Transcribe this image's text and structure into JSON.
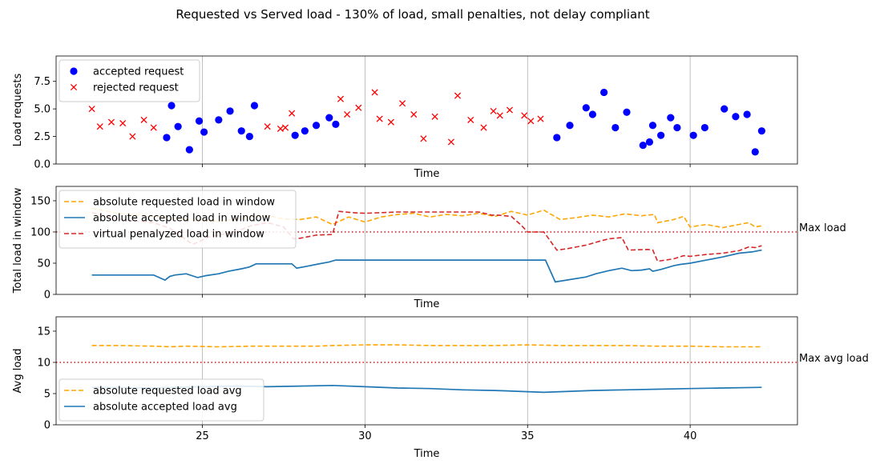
{
  "chart_data": {
    "title": "Requested vs Served load - 130% of load, small penalties, not delay compliant",
    "x_ticks": [
      25,
      30,
      35,
      40
    ],
    "xlim": [
      20.5,
      43.3
    ],
    "panels": [
      {
        "type": "scatter",
        "xlabel": "Time",
        "ylabel": "Load requests",
        "ylim": [
          0,
          9.8
        ],
        "y_ticks": [
          "0.0",
          "2.5",
          "5.0",
          "7.5"
        ],
        "y_tick_values": [
          0,
          2.5,
          5,
          7.5
        ],
        "legend_position": "top-left",
        "series": [
          {
            "name": "accepted request",
            "marker": "dot",
            "color": "#0000ff",
            "x": [
              23.9,
              24.05,
              24.25,
              24.6,
              24.9,
              25.05,
              25.5,
              25.85,
              26.2,
              26.45,
              26.6,
              27.85,
              28.15,
              28.5,
              28.9,
              29.1,
              35.9,
              36.3,
              36.8,
              37.0,
              37.35,
              37.7,
              38.05,
              38.55,
              38.75,
              38.85,
              39.1,
              39.4,
              39.6,
              40.1,
              40.45,
              41.05,
              41.4,
              41.75,
              42.0,
              42.2
            ],
            "y": [
              2.4,
              5.3,
              3.4,
              1.3,
              3.9,
              2.9,
              4.0,
              4.8,
              3.0,
              2.5,
              5.3,
              2.6,
              3.0,
              3.5,
              4.2,
              3.6,
              2.4,
              3.5,
              5.1,
              4.5,
              6.5,
              3.3,
              4.7,
              1.7,
              2.0,
              3.5,
              2.6,
              4.2,
              3.3,
              2.6,
              3.3,
              5.0,
              4.3,
              4.5,
              1.1,
              3.0
            ]
          },
          {
            "name": "rejected request",
            "marker": "cross",
            "color": "#ff0000",
            "x": [
              21.6,
              21.85,
              22.2,
              22.55,
              22.85,
              23.2,
              23.5,
              27.0,
              27.4,
              27.55,
              27.75,
              29.25,
              29.45,
              29.8,
              30.3,
              30.45,
              30.8,
              31.15,
              31.5,
              31.8,
              32.15,
              32.65,
              32.85,
              33.25,
              33.65,
              33.95,
              34.15,
              34.45,
              34.9,
              35.1,
              35.4
            ],
            "y": [
              5.0,
              3.4,
              3.8,
              3.7,
              2.5,
              4.0,
              3.3,
              3.4,
              3.2,
              3.3,
              4.6,
              5.9,
              4.5,
              5.1,
              6.5,
              4.1,
              3.8,
              5.5,
              4.5,
              2.3,
              4.3,
              2.0,
              6.2,
              4.0,
              3.3,
              4.8,
              4.4,
              4.9,
              4.4,
              3.9,
              4.1
            ]
          }
        ]
      },
      {
        "type": "line",
        "xlabel": "Time",
        "ylabel": "Total load in window",
        "ylim": [
          0,
          173
        ],
        "y_ticks": [
          "0",
          "50",
          "100",
          "150"
        ],
        "y_tick_values": [
          0,
          50,
          100,
          150
        ],
        "legend_position": "top-left",
        "reference_line": {
          "y": 100,
          "label": "Max load",
          "color": "#d62728"
        },
        "series": [
          {
            "name": "absolute requested load in window",
            "style": "dashed",
            "color": "#ffa500",
            "x": [
              21.6,
              22.5,
              23.5,
              24.5,
              25.5,
              26.5,
              27.0,
              27.5,
              28.0,
              28.5,
              29.0,
              29.5,
              30.0,
              30.5,
              31.0,
              31.5,
              32.0,
              32.5,
              33.0,
              33.5,
              34.0,
              34.5,
              35.0,
              35.5,
              36.0,
              36.5,
              37.0,
              37.5,
              38.0,
              38.5,
              38.9,
              39.0,
              39.5,
              39.8,
              40.0,
              40.5,
              41.0,
              41.5,
              41.8,
              42.0,
              42.2
            ],
            "y": [
              138,
              129,
              125,
              120,
              117,
              124,
              126,
              121,
              120,
              124,
              112,
              124,
              116,
              124,
              128,
              130,
              124,
              128,
              126,
              130,
              125,
              133,
              127,
              135,
              120,
              123,
              127,
              124,
              129,
              126,
              128,
              115,
              120,
              125,
              108,
              112,
              107,
              112,
              115,
              108,
              110
            ]
          },
          {
            "name": "absolute accepted load in window",
            "style": "solid",
            "color": "#1f77b4",
            "x": [
              21.6,
              23.5,
              23.85,
              24.0,
              24.15,
              24.5,
              24.85,
              25.1,
              25.5,
              25.8,
              26.2,
              26.45,
              26.65,
              27.75,
              27.9,
              28.2,
              28.5,
              28.9,
              29.1,
              35.55,
              35.85,
              36.2,
              36.8,
              37.1,
              37.5,
              37.9,
              38.2,
              38.5,
              38.75,
              38.85,
              39.1,
              39.5,
              39.7,
              40.0,
              40.5,
              41.0,
              41.5,
              41.9,
              42.2
            ],
            "y": [
              31,
              31,
              23,
              29,
              31,
              33,
              27,
              30,
              33,
              37,
              41,
              44,
              49,
              49,
              42,
              45,
              48,
              52,
              55,
              55,
              20,
              23,
              28,
              33,
              38,
              42,
              38,
              39,
              41,
              37,
              40,
              46,
              48,
              50,
              55,
              60,
              66,
              68,
              71
            ]
          },
          {
            "name": "virtual penalyzed load in window",
            "style": "dashed",
            "color": "#d62728",
            "x": [
              21.6,
              22.5,
              23.5,
              24.0,
              24.7,
              25.2,
              26.0,
              26.5,
              27.0,
              27.5,
              27.8,
              28.0,
              28.5,
              29.0,
              29.2,
              29.6,
              30.0,
              30.5,
              31.0,
              31.5,
              32.0,
              32.5,
              33.0,
              33.5,
              33.9,
              34.1,
              34.5,
              34.8,
              35.0,
              35.5,
              35.9,
              36.2,
              36.8,
              37.2,
              37.5,
              37.9,
              38.1,
              38.7,
              38.85,
              39.0,
              39.5,
              39.8,
              40.0,
              40.5,
              41.0,
              41.5,
              41.8,
              42.0,
              42.2
            ],
            "y": [
              131,
              120,
              115,
              106,
              80,
              92,
              100,
              110,
              115,
              108,
              89,
              90,
              95,
              96,
              133,
              131,
              130,
              131,
              132,
              132,
              132,
              132,
              132,
              132,
              127,
              127,
              125,
              111,
              100,
              100,
              71,
              73,
              79,
              85,
              89,
              91,
              71,
              72,
              71,
              53,
              57,
              62,
              61,
              64,
              66,
              70,
              76,
              75,
              78
            ]
          }
        ]
      },
      {
        "type": "line",
        "xlabel": "Time",
        "ylabel": "Avg load",
        "ylim": [
          0,
          17.3
        ],
        "y_ticks": [
          "0",
          "5",
          "10",
          "15"
        ],
        "y_tick_values": [
          0,
          5,
          10,
          15
        ],
        "legend_position": "lower-left",
        "reference_line": {
          "y": 10,
          "label": "Max avg load",
          "color": "#d62728"
        },
        "series": [
          {
            "name": "absolute requested load avg",
            "style": "dashed",
            "color": "#ffa500",
            "x": [
              21.6,
              22.5,
              23.5,
              24.0,
              24.5,
              25.5,
              26.5,
              27.5,
              28.5,
              29.0,
              30.0,
              31.0,
              32.0,
              33.0,
              34.0,
              35.0,
              36.0,
              37.0,
              38.0,
              39.0,
              40.0,
              41.0,
              42.2
            ],
            "y": [
              12.7,
              12.7,
              12.6,
              12.5,
              12.6,
              12.5,
              12.6,
              12.6,
              12.6,
              12.7,
              12.8,
              12.8,
              12.7,
              12.7,
              12.7,
              12.8,
              12.7,
              12.7,
              12.7,
              12.6,
              12.6,
              12.5,
              12.5
            ]
          },
          {
            "name": "absolute accepted load avg",
            "style": "solid",
            "color": "#1f77b4",
            "x": [
              21.6,
              23.5,
              24.0,
              25.0,
              26.0,
              27.0,
              28.0,
              29.0,
              30.0,
              31.0,
              32.0,
              33.0,
              34.0,
              35.0,
              35.5,
              36.0,
              37.0,
              38.0,
              39.0,
              40.0,
              41.0,
              42.2
            ],
            "y": [
              6.0,
              5.9,
              6.0,
              6.1,
              6.2,
              6.1,
              6.2,
              6.3,
              6.1,
              5.9,
              5.8,
              5.6,
              5.5,
              5.3,
              5.2,
              5.3,
              5.5,
              5.6,
              5.7,
              5.8,
              5.9,
              6.0
            ]
          }
        ]
      }
    ]
  }
}
